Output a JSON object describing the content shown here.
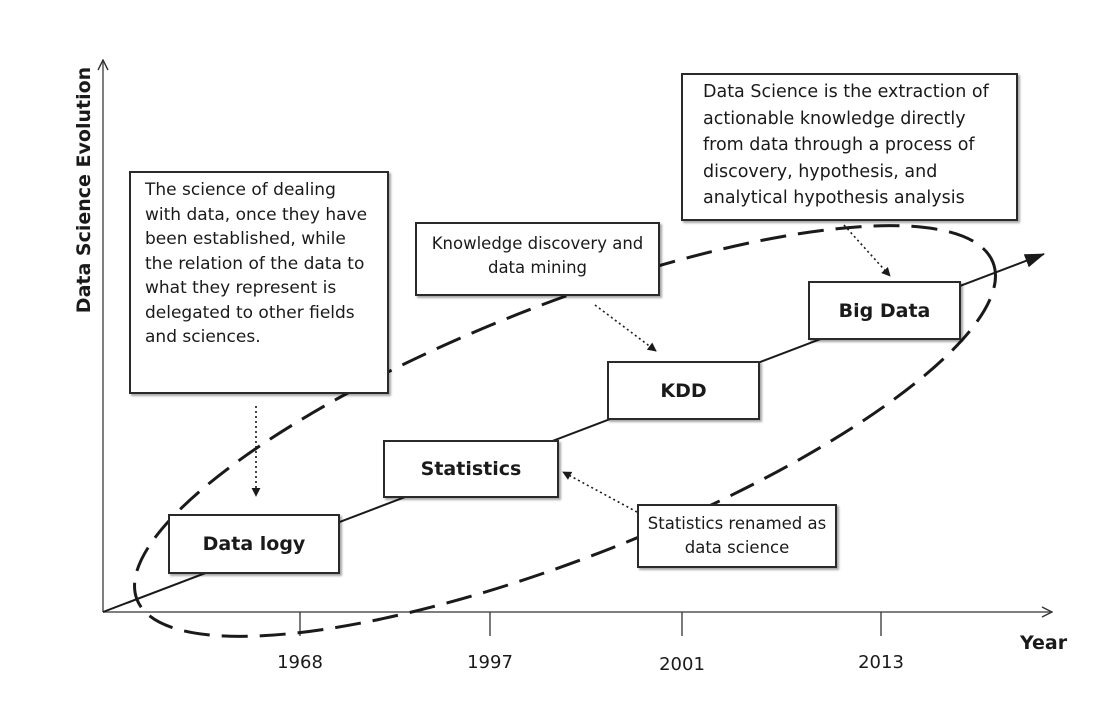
{
  "axes": {
    "y_label": "Data Science Evolution",
    "x_label": "Year",
    "x_ticks": [
      "1968",
      "1997",
      "2001",
      "2013"
    ]
  },
  "stages": [
    {
      "label": "Data logy"
    },
    {
      "label": "Statistics"
    },
    {
      "label": "KDD"
    },
    {
      "label": "Big Data"
    }
  ],
  "notes": {
    "datalogy_definition": "The science of dealing with data, once they have been established, while the relation of the data to what they represent is delegated to other fields and sciences.",
    "kdd_definition": "Knowledge discovery and data mining",
    "statistics_renamed": "Statistics renamed as data science",
    "data_science_definition": "Data Science is the extraction of actionable knowledge directly from data through a process of discovery, hypothesis, and analytical hypothesis analysis"
  },
  "colors": {
    "ink": "#1a1a1a",
    "box_border": "#2a2a2a",
    "background": "#ffffff"
  }
}
